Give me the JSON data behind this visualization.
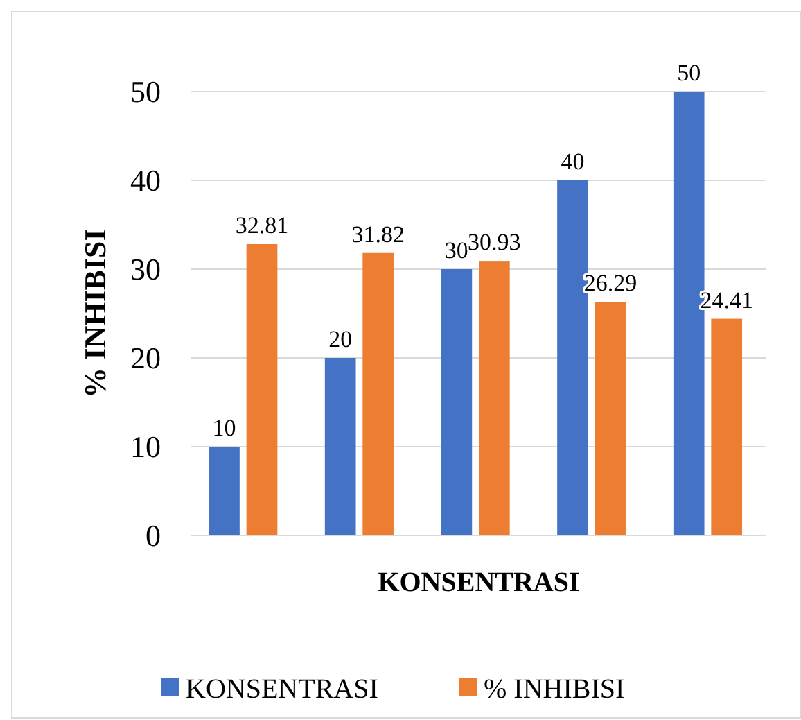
{
  "chart_data": {
    "type": "bar",
    "xlabel": "KONSENTRASI",
    "ylabel": "% INHIBISI",
    "categories": [
      null,
      null,
      null,
      null,
      null
    ],
    "series": [
      {
        "name": "KONSENTRASI",
        "color": "#4472c4",
        "values": [
          10,
          20,
          30,
          40,
          50
        ]
      },
      {
        "name": "% INHIBISI",
        "color": "#ed7d31",
        "values": [
          32.81,
          31.82,
          30.93,
          26.29,
          24.41
        ]
      }
    ],
    "ylim": [
      0,
      50
    ],
    "yticks": [
      0,
      10,
      20,
      30,
      40,
      50
    ],
    "grid": "y",
    "legend": "bottom",
    "data_labels": true
  }
}
